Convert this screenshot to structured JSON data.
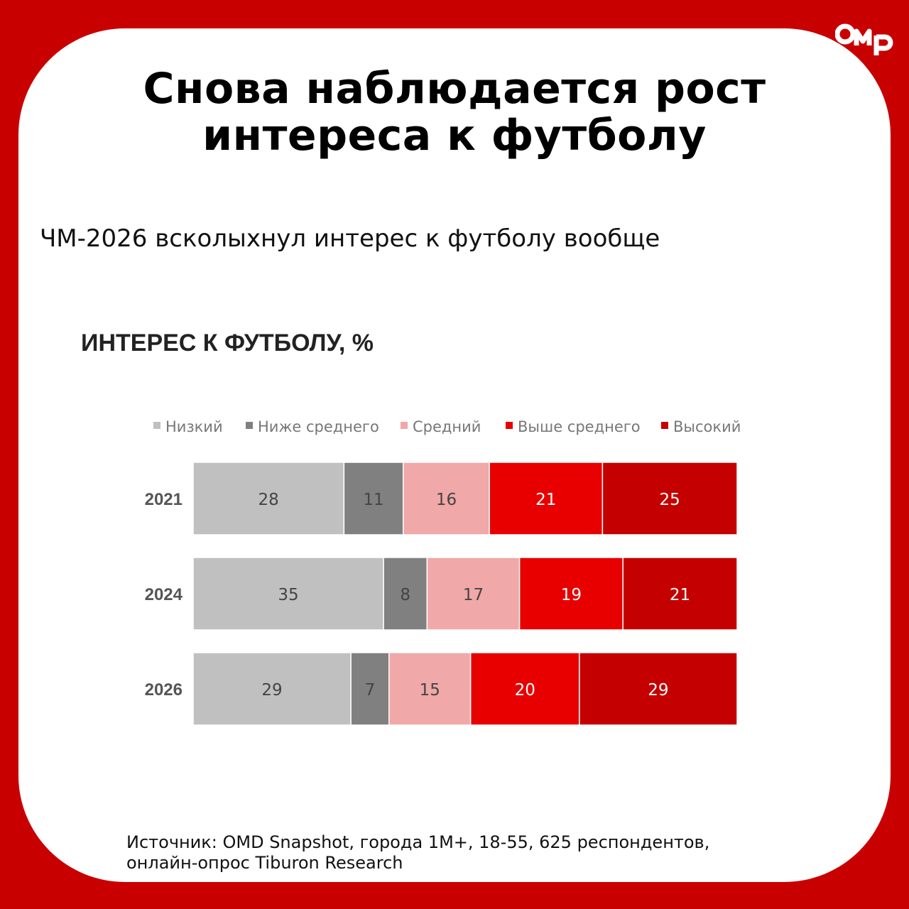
{
  "colors": {
    "background": "#c80000",
    "card": "#ffffff",
    "low": "#c0c0c0",
    "below_avg": "#808080",
    "avg": "#f0a8a8",
    "above_avg": "#e80000",
    "high": "#c40000"
  },
  "logo": {
    "text": "OMD"
  },
  "header": {
    "title_line1": "Снова наблюдается рост",
    "title_line2": "интереса к футболу",
    "subtitle": "ЧМ-2026 всколыхнул интерес к футболу вообще"
  },
  "chart_data": {
    "type": "bar",
    "orientation": "horizontal",
    "stacked": true,
    "title": "ИНТЕРЕС К ФУТБОЛУ, %",
    "categories": [
      "2021",
      "2024",
      "2026"
    ],
    "series": [
      {
        "name": "Низкий",
        "color": "#c0c0c0",
        "label_color": "#444444",
        "values": [
          28,
          35,
          29
        ]
      },
      {
        "name": "Ниже среднего",
        "color": "#808080",
        "label_color": "#444444",
        "values": [
          11,
          8,
          7
        ]
      },
      {
        "name": "Средний",
        "color": "#f0a8a8",
        "label_color": "#444444",
        "values": [
          16,
          17,
          15
        ]
      },
      {
        "name": "Выше среднего",
        "color": "#e80000",
        "label_color": "#ffffff",
        "values": [
          21,
          19,
          20
        ]
      },
      {
        "name": "Высокий",
        "color": "#c40000",
        "label_color": "#ffffff",
        "values": [
          25,
          21,
          29
        ]
      }
    ],
    "legend_position": "top",
    "grid": false
  },
  "footer": {
    "source_line1": "Источник: OMD Snapshot, города 1M+, 18-55, 625 респондентов,",
    "source_line2": "онлайн-опрос Tiburon Research"
  }
}
